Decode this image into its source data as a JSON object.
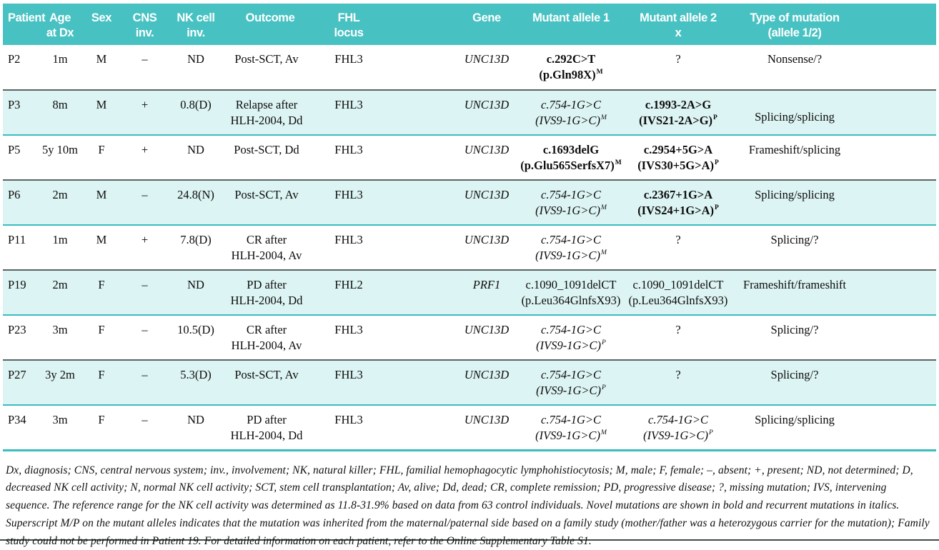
{
  "colors": {
    "header_bg": "#48c1c2",
    "header_text": "#ffffff",
    "shaded_row_bg": "#dcf4f3",
    "teal_rule": "#3bbcbd",
    "dark_rule": "#5a6462",
    "body_text": "#0c0c0c"
  },
  "table": {
    "header": {
      "columns": [
        {
          "id": "patient",
          "lines": [
            "Patient"
          ]
        },
        {
          "id": "age-at-dx",
          "lines": [
            "Age",
            "at Dx"
          ]
        },
        {
          "id": "sex",
          "lines": [
            "Sex"
          ]
        },
        {
          "id": "cns-inv",
          "lines": [
            "CNS",
            "inv."
          ]
        },
        {
          "id": "nk-cell-inv",
          "lines": [
            "NK cell",
            "inv."
          ]
        },
        {
          "id": "outcome",
          "lines": [
            "Outcome"
          ]
        },
        {
          "id": "fhl-locus",
          "lines": [
            "FHL",
            "locus"
          ]
        },
        {
          "id": "gene",
          "lines": [
            "Gene"
          ]
        },
        {
          "id": "mutant-allele-1",
          "lines": [
            "Mutant allele 1"
          ]
        },
        {
          "id": "mutant-allele-2",
          "lines": [
            "Mutant allele 2",
            "x"
          ]
        },
        {
          "id": "type-of-mutation",
          "lines": [
            "Type of mutation",
            "(allele 1/2)"
          ]
        }
      ]
    },
    "rows": [
      {
        "patient": "P2",
        "age": "1m",
        "sex": "M",
        "cns": "–",
        "nk": "ND",
        "outcome": [
          "Post-SCT, Av"
        ],
        "fhl": "FHL3",
        "gene": "UNC13D",
        "allele1": {
          "line1": "c.292C>T",
          "line2": "(p.Gln98X)",
          "sup": "M",
          "style": "bold"
        },
        "allele2": {
          "line1": "?",
          "line2": "",
          "sup": "",
          "style": "normal"
        },
        "type": "Nonsense/?",
        "shaded": false
      },
      {
        "patient": "P3",
        "age": "8m",
        "sex": "M",
        "cns": "+",
        "nk": "0.8(D)",
        "outcome": [
          "Relapse after",
          "HLH-2004, Dd"
        ],
        "fhl": "FHL3",
        "gene": "UNC13D",
        "allele1": {
          "line1": "c.754-1G>C",
          "line2": "(IVS9-1G>C)",
          "sup": "M",
          "style": "italic"
        },
        "allele2": {
          "line1": "c.1993-2A>G",
          "line2": "(IVS21-2A>G)",
          "sup": "P",
          "style": "bold"
        },
        "type": "Splicing/splicing",
        "type_valign": "bottom",
        "shaded": true
      },
      {
        "patient": "P5",
        "age": "5y 10m",
        "sex": "F",
        "cns": "+",
        "nk": "ND",
        "outcome": [
          "Post-SCT, Dd"
        ],
        "fhl": "FHL3",
        "gene": "UNC13D",
        "allele1": {
          "line1": "c.1693delG",
          "line2": "(p.Glu565SerfsX7)",
          "sup": "M",
          "style": "bold"
        },
        "allele2": {
          "line1": "c.2954+5G>A",
          "line2": "(IVS30+5G>A)",
          "sup": "P",
          "style": "bold"
        },
        "type": "Frameshift/splicing",
        "shaded": false
      },
      {
        "patient": "P6",
        "age": "2m",
        "sex": "M",
        "cns": "–",
        "nk": "24.8(N)",
        "outcome": [
          "Post-SCT, Av"
        ],
        "fhl": "FHL3",
        "gene": "UNC13D",
        "allele1": {
          "line1": "c.754-1G>C",
          "line2": "(IVS9-1G>C)",
          "sup": "M",
          "style": "italic"
        },
        "allele2": {
          "line1": "c.2367+1G>A",
          "line2": "(IVS24+1G>A)",
          "sup": "P",
          "style": "bold"
        },
        "type": "Splicing/splicing",
        "shaded": true
      },
      {
        "patient": "P11",
        "age": "1m",
        "sex": "M",
        "cns": "+",
        "nk": "7.8(D)",
        "outcome": [
          "CR after",
          "HLH-2004, Av"
        ],
        "fhl": "FHL3",
        "gene": "UNC13D",
        "allele1": {
          "line1": "c.754-1G>C",
          "line2": "(IVS9-1G>C)",
          "sup": "M",
          "style": "italic"
        },
        "allele2": {
          "line1": "?",
          "line2": "",
          "sup": "",
          "style": "normal"
        },
        "type": "Splicing/?",
        "shaded": false
      },
      {
        "patient": "P19",
        "age": "2m",
        "sex": "F",
        "cns": "–",
        "nk": "ND",
        "outcome": [
          "PD after",
          "HLH-2004, Dd"
        ],
        "fhl": "FHL2",
        "gene": "PRF1",
        "allele1": {
          "line1": "c.1090_1091delCT",
          "line2": "(p.Leu364GlnfsX93)",
          "sup": "",
          "style": "normal"
        },
        "allele2": {
          "line1": "c.1090_1091delCT",
          "line2": "(p.Leu364GlnfsX93)",
          "sup": "",
          "style": "normal"
        },
        "type": "Frameshift/frameshift",
        "shaded": true
      },
      {
        "patient": "P23",
        "age": "3m",
        "sex": "F",
        "cns": "–",
        "nk": "10.5(D)",
        "outcome": [
          "CR after",
          "HLH-2004, Av"
        ],
        "fhl": "FHL3",
        "gene": "UNC13D",
        "allele1": {
          "line1": "c.754-1G>C",
          "line2": "(IVS9-1G>C)",
          "sup": "P",
          "style": "italic"
        },
        "allele2": {
          "line1": "?",
          "line2": "",
          "sup": "",
          "style": "normal"
        },
        "type": "Splicing/?",
        "shaded": false
      },
      {
        "patient": "P27",
        "age": "3y 2m",
        "sex": "F",
        "cns": "–",
        "nk": "5.3(D)",
        "outcome": [
          "Post-SCT, Av"
        ],
        "fhl": "FHL3",
        "gene": "UNC13D",
        "allele1": {
          "line1": "c.754-1G>C",
          "line2": "(IVS9-1G>C)",
          "sup": "P",
          "style": "italic"
        },
        "allele2": {
          "line1": "?",
          "line2": "",
          "sup": "",
          "style": "normal"
        },
        "type": "Splicing/?",
        "shaded": true
      },
      {
        "patient": "P34",
        "age": "3m",
        "sex": "F",
        "cns": "–",
        "nk": "ND",
        "outcome": [
          "PD after",
          "HLH-2004, Dd"
        ],
        "fhl": "FHL3",
        "gene": "UNC13D",
        "allele1": {
          "line1": "c.754-1G>C",
          "line2": "(IVS9-1G>C)",
          "sup": "M",
          "style": "italic"
        },
        "allele2": {
          "line1": "c.754-1G>C",
          "line2": "(IVS9-1G>C)",
          "sup": "P",
          "style": "italic"
        },
        "type": "Splicing/splicing",
        "shaded": false
      }
    ]
  },
  "footnote": {
    "text": "Dx, diagnosis; CNS, central nervous system; inv., involvement; NK, natural killer; FHL, familial hemophagocytic lymphohistiocytosis; M, male; F, female; –, absent; +, present; ND, not determined; D, decreased NK cell activity; N, normal NK cell activity; SCT, stem cell transplantation; Av, alive; Dd, dead; CR, complete remission; PD, progressive disease; ?, missing mutation; IVS, intervening sequence. The reference range for the NK cell activity was determined as 11.8-31.9% based on data from 63 control individuals. Novel mutations are shown in bold and recurrent mutations in italics. Superscript M/P on the mutant alleles indicates that the mutation was inherited from the maternal/paternal side based on a family study (mother/father was a heterozygous carrier for the mutation); Family study could not be performed in Patient 19. For detailed information on each patient, refer to the Online Supplementary Table S1."
  }
}
